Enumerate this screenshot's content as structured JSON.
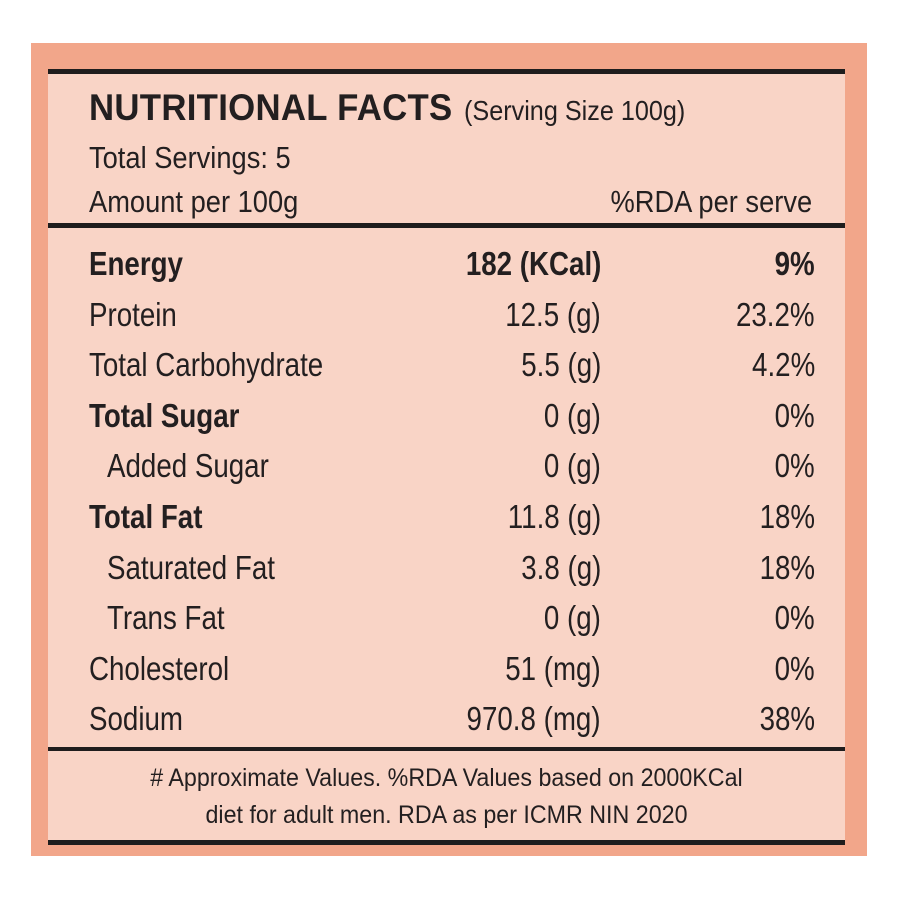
{
  "header": {
    "title": "NUTRITIONAL FACTS",
    "serving_size": "(Serving Size 100g)",
    "total_servings": "Total Servings: 5",
    "amount_label": "Amount per 100g",
    "rda_label": "%RDA per serve"
  },
  "nutrients": [
    {
      "name": "Energy",
      "amount": "182 (KCal)",
      "rda": "9%"
    },
    {
      "name": "Protein",
      "amount": "12.5 (g)",
      "rda": "23.2%"
    },
    {
      "name": "Total Carbohydrate",
      "amount": "5.5 (g)",
      "rda": "4.2%"
    },
    {
      "name": "Total Sugar",
      "amount": "0 (g)",
      "rda": "0%"
    },
    {
      "name": "Added Sugar",
      "amount": "0 (g)",
      "rda": "0%"
    },
    {
      "name": "Total Fat",
      "amount": "11.8 (g)",
      "rda": "18%"
    },
    {
      "name": "Saturated Fat",
      "amount": "3.8 (g)",
      "rda": "18%"
    },
    {
      "name": "Trans Fat",
      "amount": "0 (g)",
      "rda": "0%"
    },
    {
      "name": "Cholesterol",
      "amount": "51 (mg)",
      "rda": "0%"
    },
    {
      "name": "Sodium",
      "amount": "970.8 (mg)",
      "rda": "38%"
    }
  ],
  "footnote": {
    "line1": "# Approximate Values. %RDA Values based on 2000KCal",
    "line2": "diet for adult men. RDA as per ICMR NIN 2020"
  },
  "colors": {
    "outer_panel": "#f2a68a",
    "label_background": "#f9d4c6",
    "rules_and_text": "#1f1d1d"
  }
}
